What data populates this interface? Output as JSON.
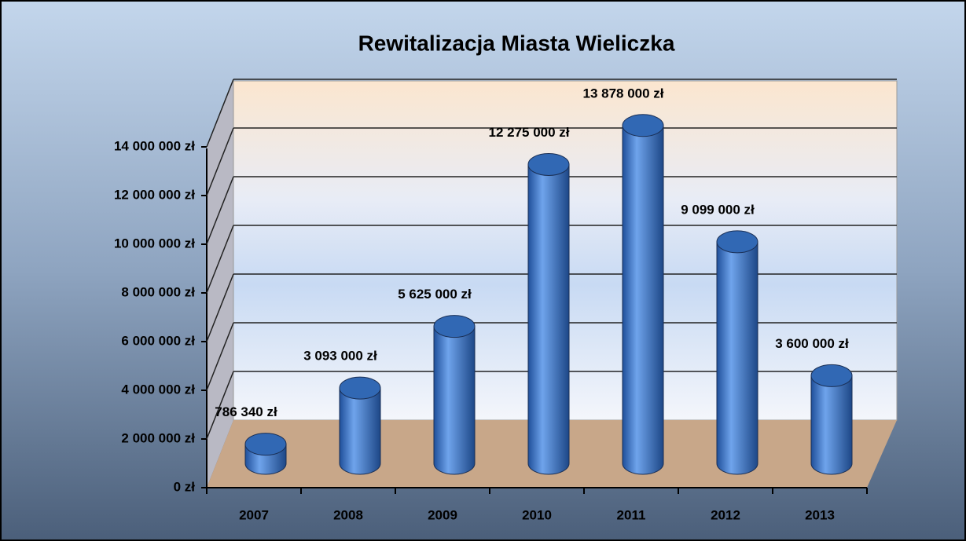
{
  "chart_data": {
    "type": "bar3d",
    "title": "Rewitalizacja Miasta Wieliczka",
    "categories": [
      "2007",
      "2008",
      "2009",
      "2010",
      "2011",
      "2012",
      "2013"
    ],
    "values": [
      786340,
      3093000,
      5625000,
      12275000,
      13878000,
      9099000,
      3600000
    ],
    "value_labels": [
      "786 340 zł",
      "3 093 000 zł",
      "5 625 000 zł",
      "12 275 000 zł",
      "13 878 000 zł",
      "9 099 000 zł",
      "3 600 000 zł"
    ],
    "color": "#3b78d0",
    "ylim": [
      0,
      16000000
    ],
    "yticks": [
      {
        "value": 0,
        "label": "0 zł"
      },
      {
        "value": 2000000,
        "label": "2 000 000 zł"
      },
      {
        "value": 4000000,
        "label": "4 000 000 zł"
      },
      {
        "value": 6000000,
        "label": "6 000 000 zł"
      },
      {
        "value": 8000000,
        "label": "8 000 000 zł"
      },
      {
        "value": 10000000,
        "label": "10 000 000 zł"
      },
      {
        "value": 12000000,
        "label": "12 000 000 zł"
      },
      {
        "value": 14000000,
        "label": "14 000 000 zł"
      }
    ],
    "grid": true
  }
}
